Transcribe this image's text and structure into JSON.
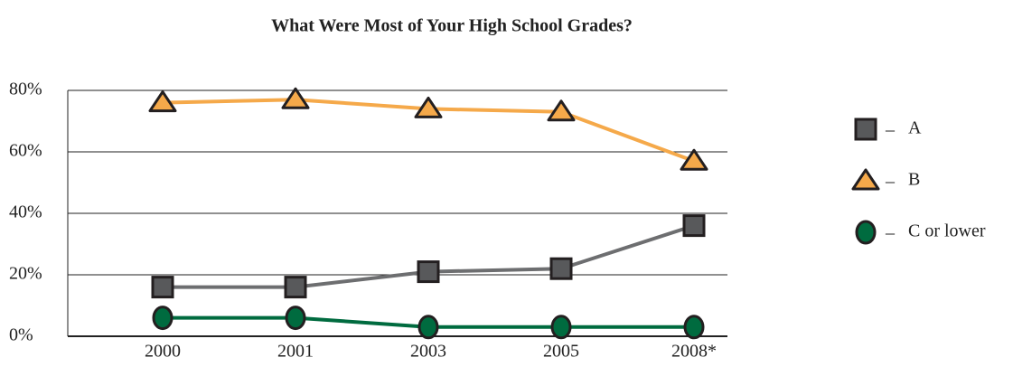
{
  "chart_data": {
    "type": "line",
    "title": "What Were Most of Your High School Grades?",
    "categories": [
      "2000",
      "2001",
      "2003",
      "2005",
      "2008*"
    ],
    "series": [
      {
        "name": "A",
        "color": "#6d6e70",
        "marker": "square",
        "marker_color": "#58595b",
        "values": [
          16,
          16,
          21,
          22,
          36
        ]
      },
      {
        "name": "B",
        "color": "#f5a94a",
        "marker": "triangle",
        "marker_color": "#f5a94a",
        "values": [
          76,
          77,
          74,
          73,
          57
        ]
      },
      {
        "name": "C or lower",
        "color": "#006b3f",
        "marker": "circle",
        "marker_color": "#006b3f",
        "values": [
          6,
          6,
          3,
          3,
          3
        ]
      }
    ],
    "ylim": [
      0,
      80
    ],
    "yticks": [
      {
        "value": 0,
        "label": "0%"
      },
      {
        "value": 20,
        "label": "20%"
      },
      {
        "value": 40,
        "label": "40%"
      },
      {
        "value": 60,
        "label": "60%"
      },
      {
        "value": 80,
        "label": "80%"
      }
    ],
    "grid": true,
    "legend": "right"
  }
}
